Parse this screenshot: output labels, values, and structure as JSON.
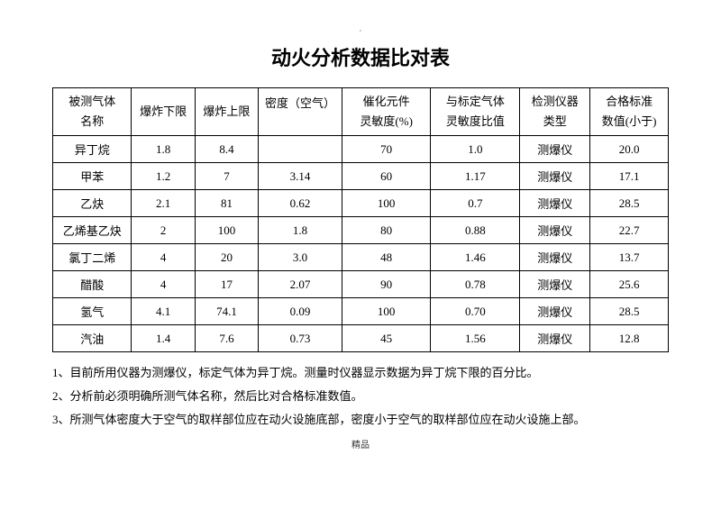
{
  "dot": "·",
  "title": "动火分析数据比对表",
  "columns": [
    "被测气体名称",
    "爆炸下限",
    "爆炸上限",
    "密度（空气）",
    "催化元件灵敏度(%)",
    "与标定气体灵敏度比值",
    "检测仪器类型",
    "合格标准数值(小于)"
  ],
  "rows": [
    [
      "异丁烷",
      "1.8",
      "8.4",
      "",
      "70",
      "1.0",
      "测爆仪",
      "20.0"
    ],
    [
      "甲苯",
      "1.2",
      "7",
      "3.14",
      "60",
      "1.17",
      "测爆仪",
      "17.1"
    ],
    [
      "乙炔",
      "2.1",
      "81",
      "0.62",
      "100",
      "0.7",
      "测爆仪",
      "28.5"
    ],
    [
      "乙烯基乙炔",
      "2",
      "100",
      "1.8",
      "80",
      "0.88",
      "测爆仪",
      "22.7"
    ],
    [
      "氯丁二烯",
      "4",
      "20",
      "3.0",
      "48",
      "1.46",
      "测爆仪",
      "13.7"
    ],
    [
      "醋酸",
      "4",
      "17",
      "2.07",
      "90",
      "0.78",
      "测爆仪",
      "25.6"
    ],
    [
      "氢气",
      "4.1",
      "74.1",
      "0.09",
      "100",
      "0.70",
      "测爆仪",
      "28.5"
    ],
    [
      "汽油",
      "1.4",
      "7.6",
      "0.73",
      "45",
      "1.56",
      "测爆仪",
      "12.8"
    ]
  ],
  "notes": [
    "1、目前所用仪器为测爆仪，标定气体为异丁烷。测量时仪器显示数据为异丁烷下限的百分比。",
    "2、分析前必须明确所测气体名称，然后比对合格标准数值。",
    "3、所测气体密度大于空气的取样部位应在动火设施底部，密度小于空气的取样部位应在动火设施上部。"
  ],
  "footer": "精品",
  "header_breaks": {
    "0": [
      "被测气体",
      "名称"
    ],
    "3": [
      "密度（空气）",
      ""
    ],
    "4": [
      "催化元件",
      "灵敏度(%)"
    ],
    "5": [
      "与标定气体",
      "灵敏度比值"
    ],
    "6": [
      "检测仪器",
      "类型"
    ],
    "7": [
      "合格标准",
      "数值(小于)"
    ]
  }
}
